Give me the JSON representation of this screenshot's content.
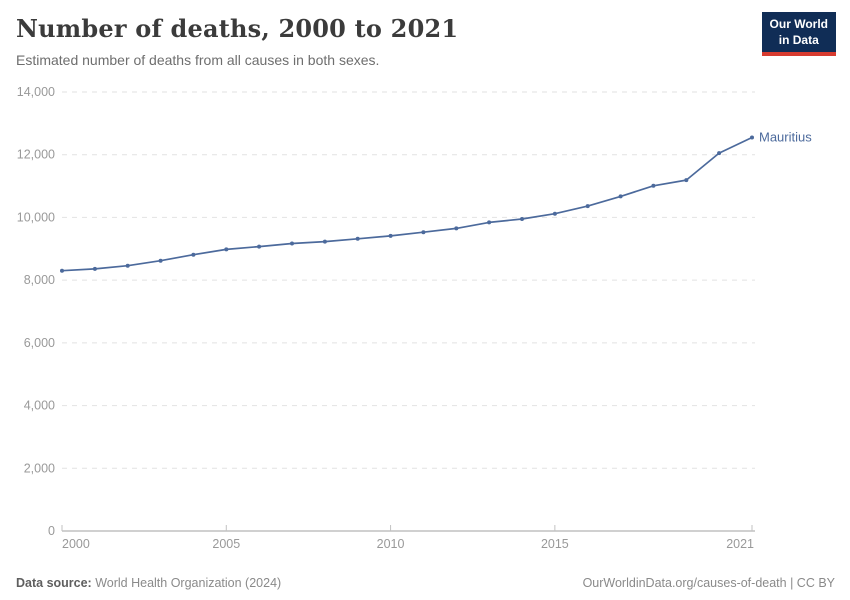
{
  "header": {
    "title": "Number of deaths, 2000 to 2021",
    "subtitle": "Estimated number of deaths from all causes in both sexes.",
    "logo": {
      "line1": "Our World",
      "line2": "in Data",
      "bg_color": "#102D56",
      "accent_color": "#D73B2F"
    }
  },
  "chart_data": {
    "type": "line",
    "title": "Number of deaths, 2000 to 2021",
    "subtitle": "Estimated number of deaths from all causes in both sexes.",
    "xlabel": "",
    "ylabel": "",
    "xlim": [
      2000,
      2021
    ],
    "ylim": [
      0,
      14000
    ],
    "grid": "horizontal dashed",
    "legend": "end-of-line entity label",
    "x_ticks": [
      2000,
      2005,
      2010,
      2015,
      2021
    ],
    "x_tick_labels": [
      "2000",
      "2005",
      "2010",
      "2015",
      "2021"
    ],
    "y_ticks": [
      0,
      2000,
      4000,
      6000,
      8000,
      10000,
      12000,
      14000
    ],
    "y_tick_labels": [
      "0",
      "2,000",
      "4,000",
      "6,000",
      "8,000",
      "10,000",
      "12,000",
      "14,000"
    ],
    "series": [
      {
        "name": "Mauritius",
        "color": "#4C6A9C",
        "x": [
          2000,
          2001,
          2002,
          2003,
          2004,
          2005,
          2006,
          2007,
          2008,
          2009,
          2010,
          2011,
          2012,
          2013,
          2014,
          2015,
          2016,
          2017,
          2018,
          2019,
          2020,
          2021
        ],
        "values": [
          8300,
          8360,
          8460,
          8620,
          8810,
          8980,
          9070,
          9170,
          9230,
          9320,
          9410,
          9530,
          9650,
          9840,
          9950,
          10120,
          10360,
          10670,
          11010,
          11190,
          12050,
          12550
        ]
      }
    ],
    "colors": {
      "grid": "#e2e2e2",
      "axis": "#a0a0a0",
      "tick": "#c2c2c2",
      "tick_label": "#999999"
    }
  },
  "footer": {
    "source_label": "Data source:",
    "source_text": " World Health Organization (2024)",
    "credit": "OurWorldinData.org/causes-of-death | CC BY"
  }
}
